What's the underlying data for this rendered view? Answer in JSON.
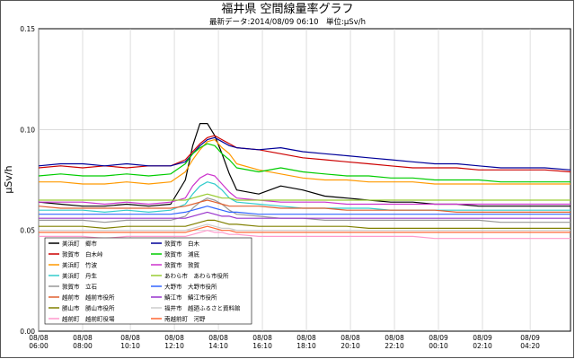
{
  "chart_data": {
    "type": "line",
    "title": "福井県 空間線量率グラフ",
    "subtitle": "最新データ:2014/08/09 06:10　単位:μSv/h",
    "ylabel": "μSv/h",
    "xlabel": "",
    "ylim": [
      0,
      0.15
    ],
    "yticks": [
      0.0,
      0.05,
      0.1,
      0.15
    ],
    "grid": true,
    "legend_position": "bottom-left",
    "x": [
      "08/08 06:00",
      "08/08 07:00",
      "08/08 08:00",
      "08/08 09:00",
      "08/08 10:00",
      "08/08 11:00",
      "08/08 12:00",
      "08/08 12:40",
      "08/08 13:00",
      "08/08 13:20",
      "08/08 13:40",
      "08/08 14:00",
      "08/08 14:20",
      "08/08 14:40",
      "08/08 15:00",
      "08/08 16:00",
      "08/08 17:00",
      "08/08 18:00",
      "08/08 19:00",
      "08/08 20:00",
      "08/08 21:00",
      "08/08 22:00",
      "08/08 23:00",
      "08/09 00:00",
      "08/09 01:00",
      "08/09 02:00",
      "08/09 03:00",
      "08/09 04:00",
      "08/09 05:00",
      "08/09 06:10"
    ],
    "xtick_labels": [
      {
        "date": "08/08",
        "time": "06:00"
      },
      {
        "date": "08/08",
        "time": "08:00"
      },
      {
        "date": "08/08",
        "time": "10:10"
      },
      {
        "date": "08/08",
        "time": "12:10"
      },
      {
        "date": "08/08",
        "time": "14:10"
      },
      {
        "date": "08/08",
        "time": "16:10"
      },
      {
        "date": "08/08",
        "time": "18:10"
      },
      {
        "date": "08/08",
        "time": "20:10"
      },
      {
        "date": "08/08",
        "time": "22:10"
      },
      {
        "date": "08/09",
        "time": "00:10"
      },
      {
        "date": "08/09",
        "time": "02:10"
      },
      {
        "date": "08/09",
        "time": "04:20"
      }
    ],
    "series": [
      {
        "name": "美浜町　郷市",
        "color": "#000000",
        "values": [
          0.064,
          0.063,
          0.062,
          0.062,
          0.063,
          0.062,
          0.063,
          0.075,
          0.092,
          0.103,
          0.103,
          0.097,
          0.088,
          0.078,
          0.07,
          0.068,
          0.072,
          0.07,
          0.067,
          0.066,
          0.065,
          0.064,
          0.064,
          0.063,
          0.063,
          0.062,
          0.062,
          0.062,
          0.062,
          0.062
        ]
      },
      {
        "name": "敦賀市　白木峠",
        "color": "#cc0000",
        "values": [
          0.081,
          0.082,
          0.081,
          0.082,
          0.081,
          0.082,
          0.082,
          0.085,
          0.089,
          0.093,
          0.096,
          0.097,
          0.095,
          0.093,
          0.091,
          0.09,
          0.088,
          0.086,
          0.085,
          0.084,
          0.083,
          0.082,
          0.081,
          0.081,
          0.081,
          0.08,
          0.08,
          0.08,
          0.08,
          0.079
        ]
      },
      {
        "name": "美浜町　竹波",
        "color": "#ff9900",
        "values": [
          0.074,
          0.074,
          0.073,
          0.073,
          0.074,
          0.073,
          0.074,
          0.079,
          0.085,
          0.09,
          0.094,
          0.095,
          0.091,
          0.088,
          0.083,
          0.08,
          0.078,
          0.076,
          0.075,
          0.075,
          0.074,
          0.074,
          0.074,
          0.073,
          0.073,
          0.073,
          0.073,
          0.073,
          0.073,
          0.073
        ]
      },
      {
        "name": "美浜町　丹生",
        "color": "#33cccc",
        "values": [
          0.06,
          0.06,
          0.06,
          0.059,
          0.06,
          0.059,
          0.06,
          0.063,
          0.068,
          0.072,
          0.074,
          0.073,
          0.07,
          0.066,
          0.064,
          0.063,
          0.062,
          0.061,
          0.061,
          0.061,
          0.061,
          0.06,
          0.06,
          0.06,
          0.06,
          0.06,
          0.06,
          0.06,
          0.06,
          0.06
        ]
      },
      {
        "name": "敦賀市　立石",
        "color": "#999999",
        "values": [
          0.055,
          0.055,
          0.055,
          0.054,
          0.055,
          0.055,
          0.055,
          0.057,
          0.061,
          0.064,
          0.066,
          0.065,
          0.063,
          0.06,
          0.058,
          0.057,
          0.056,
          0.056,
          0.055,
          0.055,
          0.055,
          0.055,
          0.055,
          0.055,
          0.055,
          0.055,
          0.054,
          0.054,
          0.054,
          0.054
        ]
      },
      {
        "name": "越前市　越前市役所",
        "color": "#e06030",
        "values": [
          0.062,
          0.061,
          0.061,
          0.061,
          0.061,
          0.061,
          0.061,
          0.062,
          0.063,
          0.064,
          0.065,
          0.064,
          0.063,
          0.062,
          0.062,
          0.062,
          0.061,
          0.061,
          0.061,
          0.06,
          0.06,
          0.06,
          0.06,
          0.06,
          0.059,
          0.059,
          0.059,
          0.059,
          0.059,
          0.059
        ]
      },
      {
        "name": "勝山市　勝山市役所",
        "color": "#808000",
        "values": [
          0.052,
          0.052,
          0.052,
          0.051,
          0.052,
          0.052,
          0.052,
          0.052,
          0.053,
          0.054,
          0.055,
          0.055,
          0.054,
          0.053,
          0.053,
          0.052,
          0.052,
          0.052,
          0.052,
          0.052,
          0.051,
          0.051,
          0.051,
          0.051,
          0.051,
          0.051,
          0.051,
          0.051,
          0.051,
          0.051
        ]
      },
      {
        "name": "越前町　越前町役場",
        "color": "#ff99cc",
        "values": [
          0.047,
          0.047,
          0.047,
          0.046,
          0.047,
          0.047,
          0.047,
          0.047,
          0.048,
          0.049,
          0.05,
          0.049,
          0.049,
          0.048,
          0.048,
          0.047,
          0.047,
          0.047,
          0.047,
          0.047,
          0.047,
          0.047,
          0.047,
          0.046,
          0.046,
          0.046,
          0.046,
          0.046,
          0.046,
          0.046
        ]
      },
      {
        "name": "敦賀市　白木",
        "color": "#000099",
        "values": [
          0.082,
          0.083,
          0.083,
          0.082,
          0.083,
          0.082,
          0.082,
          0.084,
          0.088,
          0.092,
          0.095,
          0.096,
          0.094,
          0.092,
          0.091,
          0.09,
          0.091,
          0.089,
          0.088,
          0.087,
          0.086,
          0.085,
          0.084,
          0.083,
          0.083,
          0.082,
          0.081,
          0.081,
          0.081,
          0.08
        ]
      },
      {
        "name": "敦賀市　浦底",
        "color": "#00cc00",
        "values": [
          0.077,
          0.078,
          0.077,
          0.077,
          0.078,
          0.077,
          0.078,
          0.083,
          0.088,
          0.091,
          0.093,
          0.092,
          0.088,
          0.085,
          0.081,
          0.079,
          0.081,
          0.079,
          0.078,
          0.077,
          0.077,
          0.076,
          0.076,
          0.075,
          0.075,
          0.075,
          0.074,
          0.074,
          0.074,
          0.074
        ]
      },
      {
        "name": "敦賀市　敦賀",
        "color": "#cc33cc",
        "values": [
          0.064,
          0.064,
          0.064,
          0.063,
          0.064,
          0.063,
          0.064,
          0.066,
          0.072,
          0.076,
          0.078,
          0.077,
          0.073,
          0.069,
          0.066,
          0.065,
          0.064,
          0.064,
          0.064,
          0.063,
          0.063,
          0.063,
          0.063,
          0.063,
          0.063,
          0.063,
          0.063,
          0.063,
          0.063,
          0.063
        ]
      },
      {
        "name": "あわら市　あわら市役所",
        "color": "#99cc33",
        "values": [
          0.065,
          0.065,
          0.065,
          0.065,
          0.065,
          0.065,
          0.065,
          0.065,
          0.066,
          0.067,
          0.068,
          0.067,
          0.066,
          0.066,
          0.065,
          0.065,
          0.065,
          0.065,
          0.065,
          0.065,
          0.065,
          0.065,
          0.065,
          0.065,
          0.065,
          0.065,
          0.065,
          0.065,
          0.065,
          0.065
        ]
      },
      {
        "name": "大野市　大野市役所",
        "color": "#3366ff",
        "values": [
          0.058,
          0.058,
          0.058,
          0.058,
          0.058,
          0.058,
          0.058,
          0.059,
          0.06,
          0.061,
          0.062,
          0.061,
          0.06,
          0.059,
          0.059,
          0.058,
          0.058,
          0.058,
          0.058,
          0.058,
          0.058,
          0.058,
          0.058,
          0.058,
          0.058,
          0.058,
          0.058,
          0.058,
          0.058,
          0.058
        ]
      },
      {
        "name": "鯖江市　鯖江市役所",
        "color": "#9933cc",
        "values": [
          0.056,
          0.056,
          0.056,
          0.056,
          0.056,
          0.056,
          0.056,
          0.056,
          0.057,
          0.058,
          0.059,
          0.058,
          0.057,
          0.057,
          0.056,
          0.056,
          0.056,
          0.056,
          0.056,
          0.056,
          0.056,
          0.056,
          0.056,
          0.056,
          0.056,
          0.056,
          0.056,
          0.056,
          0.056,
          0.056
        ]
      },
      {
        "name": "福井市　越廼ふるさと資料館",
        "color": "#cccccc",
        "values": [
          0.05,
          0.05,
          0.05,
          0.05,
          0.05,
          0.05,
          0.05,
          0.05,
          0.051,
          0.052,
          0.053,
          0.052,
          0.051,
          0.051,
          0.05,
          0.05,
          0.05,
          0.05,
          0.05,
          0.05,
          0.05,
          0.05,
          0.05,
          0.05,
          0.05,
          0.05,
          0.05,
          0.05,
          0.05,
          0.05
        ]
      },
      {
        "name": "南越前町　河野",
        "color": "#ff6633",
        "values": [
          0.049,
          0.049,
          0.049,
          0.049,
          0.049,
          0.049,
          0.049,
          0.049,
          0.05,
          0.051,
          0.052,
          0.051,
          0.05,
          0.05,
          0.049,
          0.049,
          0.049,
          0.049,
          0.049,
          0.049,
          0.049,
          0.049,
          0.049,
          0.049,
          0.049,
          0.049,
          0.049,
          0.049,
          0.049,
          0.049
        ]
      }
    ]
  }
}
